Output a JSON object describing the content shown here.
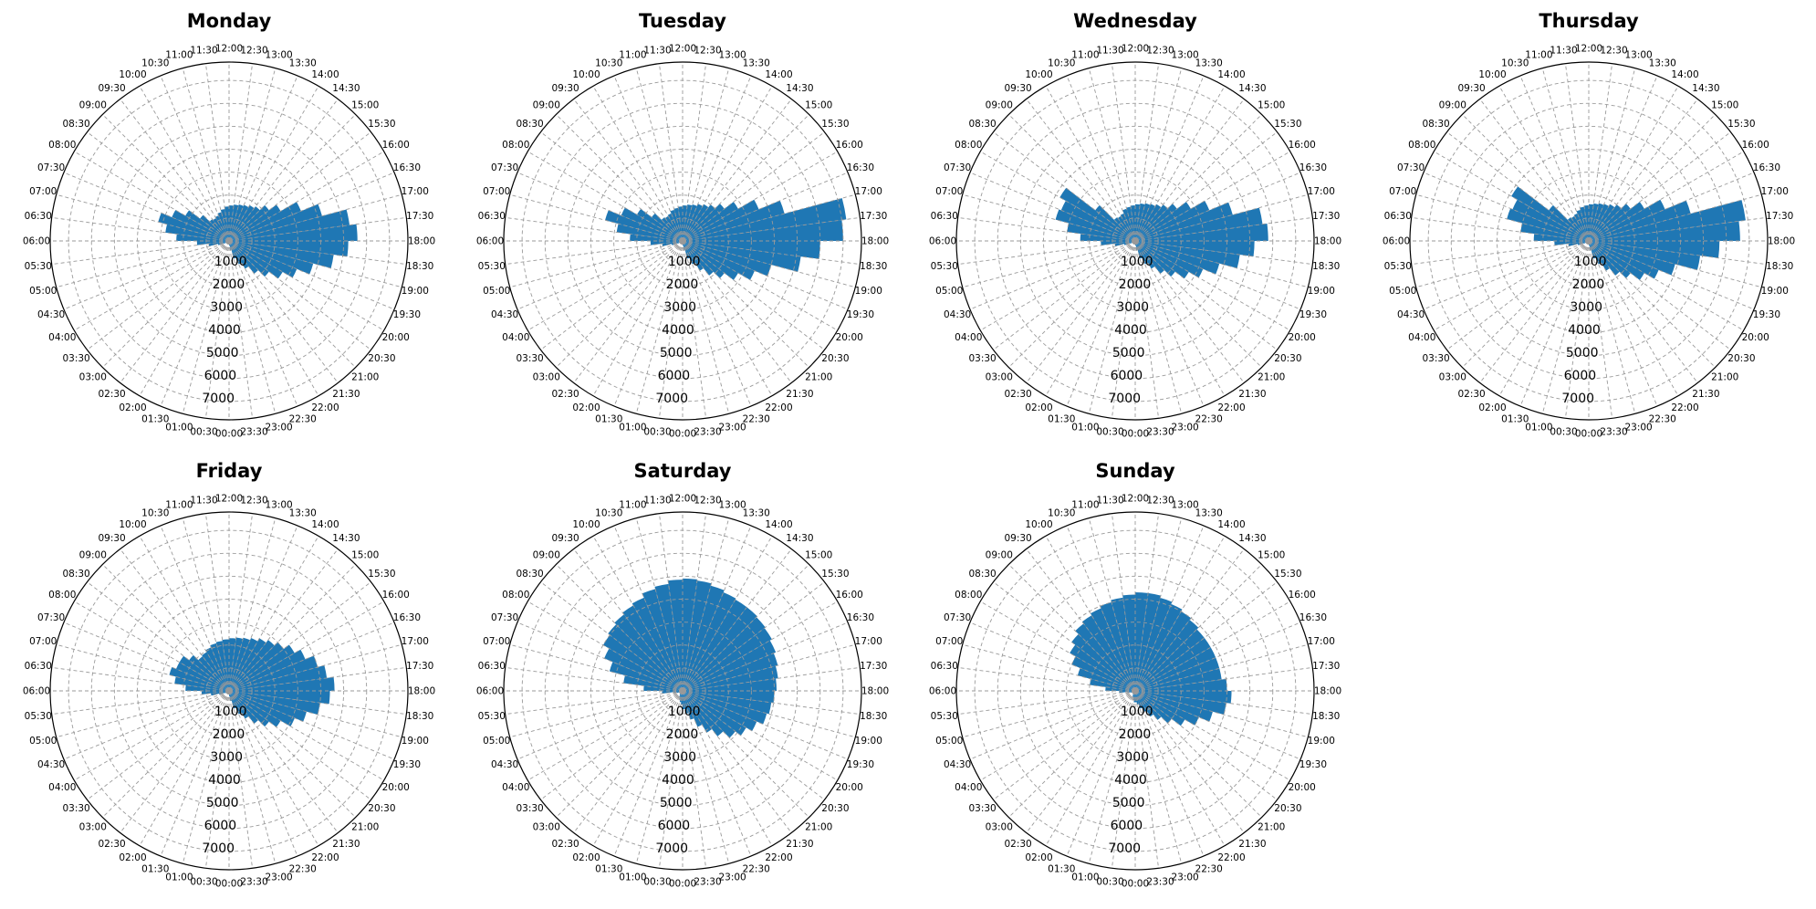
{
  "chart_data": {
    "type": "polar-bar",
    "angle_labels": [
      "00:00",
      "00:30",
      "01:00",
      "01:30",
      "02:00",
      "02:30",
      "03:00",
      "03:30",
      "04:00",
      "04:30",
      "05:00",
      "05:30",
      "06:00",
      "06:30",
      "07:00",
      "07:30",
      "08:00",
      "08:30",
      "09:00",
      "09:30",
      "10:00",
      "10:30",
      "11:00",
      "11:30",
      "12:00",
      "12:30",
      "13:00",
      "13:30",
      "14:00",
      "14:30",
      "15:00",
      "15:30",
      "16:00",
      "16:30",
      "17:00",
      "17:30",
      "18:00",
      "18:30",
      "19:00",
      "19:30",
      "20:00",
      "20:30",
      "21:00",
      "21:30",
      "22:00",
      "22:30",
      "23:00",
      "23:30"
    ],
    "radial_ticks": [
      1000,
      2000,
      3000,
      4000,
      5000,
      6000,
      7000
    ],
    "rmax": 7800,
    "bar_color": "#1f77b4",
    "grid": true,
    "panels": [
      {
        "title": "Monday",
        "values": [
          90,
          60,
          50,
          40,
          40,
          50,
          70,
          130,
          250,
          500,
          900,
          1400,
          2300,
          2800,
          3200,
          2700,
          2200,
          1600,
          1200,
          1150,
          1200,
          1300,
          1400,
          1500,
          1550,
          1600,
          1650,
          1700,
          1800,
          1900,
          2200,
          2600,
          3400,
          4200,
          5300,
          5600,
          5200,
          4600,
          3800,
          3200,
          2700,
          2200,
          1800,
          1400,
          1100,
          800,
          400,
          200
        ]
      },
      {
        "title": "Tuesday",
        "values": [
          90,
          60,
          50,
          40,
          40,
          50,
          70,
          130,
          250,
          500,
          900,
          1400,
          2300,
          2900,
          3500,
          2900,
          2300,
          1700,
          1300,
          1250,
          1300,
          1400,
          1450,
          1500,
          1550,
          1600,
          1650,
          1750,
          1850,
          2000,
          2300,
          2800,
          3600,
          4600,
          7200,
          7000,
          6000,
          5200,
          4000,
          3400,
          2800,
          2300,
          1900,
          1500,
          1100,
          800,
          400,
          200
        ]
      },
      {
        "title": "Wednesday",
        "values": [
          90,
          60,
          50,
          40,
          40,
          50,
          70,
          130,
          250,
          500,
          900,
          1500,
          2400,
          3000,
          3600,
          3500,
          3800,
          2200,
          1300,
          1250,
          1300,
          1450,
          1500,
          1550,
          1600,
          1650,
          1700,
          1750,
          1850,
          2000,
          2300,
          2800,
          3500,
          4400,
          5600,
          5800,
          5200,
          4600,
          3800,
          3200,
          2700,
          2200,
          1800,
          1400,
          1100,
          800,
          400,
          200
        ]
      },
      {
        "title": "Thursday",
        "values": [
          90,
          60,
          50,
          40,
          40,
          50,
          70,
          130,
          250,
          500,
          900,
          1500,
          2400,
          3000,
          3700,
          3600,
          3900,
          2200,
          1300,
          1250,
          1300,
          1400,
          1500,
          1550,
          1600,
          1650,
          1700,
          1750,
          1850,
          2000,
          2300,
          2800,
          3600,
          4600,
          6900,
          6600,
          5700,
          4900,
          3900,
          3300,
          2800,
          2300,
          1900,
          1500,
          1100,
          800,
          400,
          200
        ]
      },
      {
        "title": "Friday",
        "values": [
          100,
          70,
          60,
          50,
          40,
          50,
          70,
          120,
          220,
          450,
          800,
          1200,
          1900,
          2400,
          2700,
          2500,
          2500,
          2200,
          1900,
          1950,
          2050,
          2150,
          2200,
          2250,
          2300,
          2350,
          2400,
          2500,
          2650,
          2800,
          3000,
          3300,
          3600,
          4000,
          4300,
          4600,
          4400,
          4000,
          3500,
          3100,
          2600,
          2200,
          1800,
          1400,
          1100,
          800,
          450,
          250
        ]
      },
      {
        "title": "Saturday",
        "values": [
          600,
          500,
          400,
          300,
          220,
          180,
          160,
          160,
          180,
          250,
          400,
          900,
          1700,
          2600,
          3300,
          3700,
          4000,
          4100,
          4200,
          4300,
          4400,
          4600,
          4700,
          4850,
          4900,
          4850,
          4750,
          4650,
          4600,
          4600,
          4550,
          4500,
          4400,
          4300,
          4200,
          4100,
          4000,
          3900,
          3800,
          3500,
          3200,
          2900,
          2500,
          2100,
          1700,
          1300,
          1000,
          800
        ]
      },
      {
        "title": "Sunday",
        "values": [
          500,
          400,
          300,
          250,
          180,
          150,
          140,
          140,
          160,
          220,
          350,
          700,
          1300,
          2000,
          2600,
          3000,
          3300,
          3500,
          3700,
          3800,
          3900,
          4000,
          4100,
          4200,
          4300,
          4300,
          4200,
          4100,
          4000,
          3900,
          3800,
          3800,
          3800,
          3800,
          3800,
          4000,
          4200,
          4000,
          3500,
          3000,
          2500,
          2000,
          1600,
          1300,
          1000,
          800,
          600,
          500
        ]
      }
    ]
  }
}
